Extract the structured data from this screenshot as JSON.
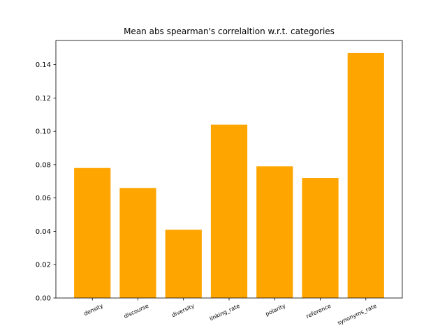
{
  "chart_data": {
    "type": "bar",
    "title": "Mean abs spearman's correlaltion w.r.t. categories",
    "xlabel": "",
    "ylabel": "",
    "categories": [
      "density",
      "discourse",
      "diversity",
      "linking_rate",
      "polarity",
      "reference",
      "synonyms_rate"
    ],
    "values": [
      0.078,
      0.066,
      0.041,
      0.104,
      0.079,
      0.072,
      0.147
    ],
    "ylim": [
      0,
      0.1545
    ],
    "yticks": [
      "0.00",
      "0.02",
      "0.04",
      "0.06",
      "0.08",
      "0.10",
      "0.12",
      "0.14"
    ],
    "bar_color": "#ffa500",
    "grid": false,
    "legend": "none"
  }
}
